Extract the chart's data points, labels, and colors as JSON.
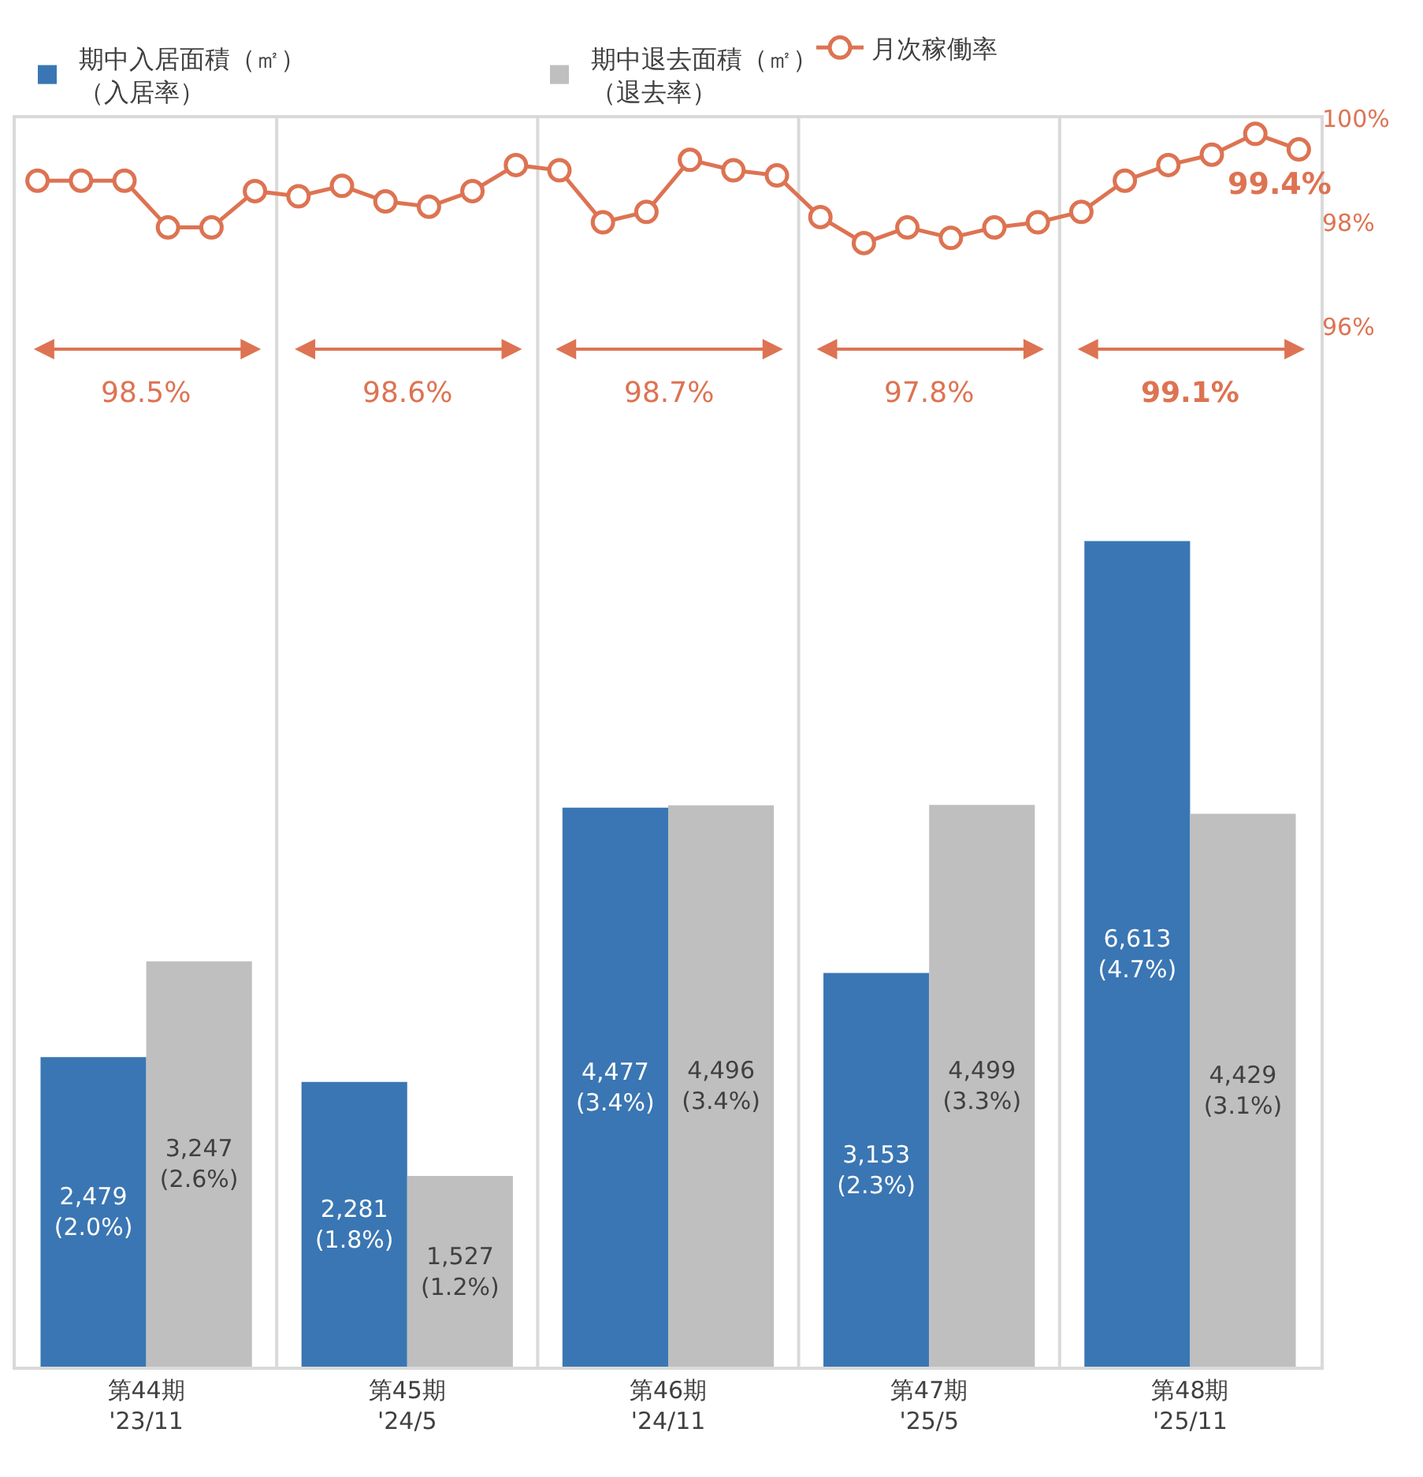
{
  "chart_data": [
    {
      "type": "bar",
      "categories": [
        "第44期\n'23/11",
        "第45期\n'24/5",
        "第46期\n'24/11",
        "第47期\n'25/5",
        "第48期\n'25/11"
      ],
      "series": [
        {
          "name": "期中入居面積（㎡）（入居率）",
          "color": "#3a76b3",
          "values": [
            2479,
            2281,
            4477,
            3153,
            6613
          ],
          "value_labels": [
            "2,479\n(2.0%)",
            "2,281\n(1.8%)",
            "4,477\n(3.4%)",
            "3,153\n(2.3%)",
            "6,613\n(4.7%)"
          ]
        },
        {
          "name": "期中退去面積（㎡）（退去率）",
          "color": "#bfbfbf",
          "values": [
            3247,
            1527,
            4496,
            4499,
            4429
          ],
          "value_labels": [
            "3,247\n(2.6%)",
            "1,527\n(1.2%)",
            "4,496\n(3.4%)",
            "4,499\n(3.3%)",
            "4,429\n(3.1%)"
          ]
        }
      ],
      "ylim": [
        0,
        10000
      ],
      "annotations": [
        "98.5%",
        "98.6%",
        "98.7%",
        "97.8%",
        "99.1%"
      ],
      "legend": "top left",
      "tick_labels": "x",
      "grid": false
    },
    {
      "type": "line",
      "categories": [
        null,
        null,
        null,
        null,
        null,
        null,
        null,
        null,
        null,
        null,
        null,
        null,
        null,
        null,
        null,
        null,
        null,
        null,
        null,
        null,
        null,
        null,
        null,
        null,
        null,
        null,
        null,
        null,
        null,
        null
      ],
      "series": [
        {
          "name": "月次稼働率",
          "color": "#dd7352",
          "values": [
            98.8,
            98.8,
            98.8,
            97.9,
            97.9,
            98.6,
            98.5,
            98.7,
            98.4,
            98.3,
            98.6,
            99.1,
            99.0,
            98.0,
            98.2,
            99.2,
            99.0,
            98.9,
            98.1,
            97.6,
            97.9,
            97.7,
            97.9,
            98.0,
            98.2,
            98.8,
            99.1,
            99.3,
            99.7,
            99.4
          ]
        }
      ],
      "marker": "circle",
      "ylim": [
        76,
        100
      ],
      "yticks": [
        {
          "value": 96,
          "label": "96%"
        },
        {
          "value": 98,
          "label": "98%"
        },
        {
          "value": 100,
          "label": "100%"
        }
      ],
      "annotations": [
        "99.4%"
      ],
      "legend": "top right",
      "tick_labels": "y",
      "grid": false
    }
  ]
}
